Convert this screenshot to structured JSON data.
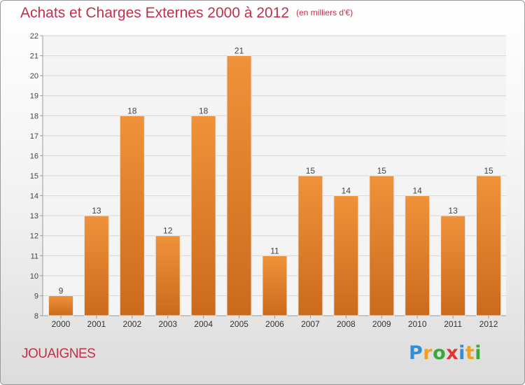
{
  "title": "Achats et Charges Externes 2000 à 2012",
  "unit": "(en milliers d'€)",
  "commune": "JOUAIGNES",
  "logo": {
    "letters": [
      "P",
      "r",
      "o",
      "x",
      "i",
      "t",
      "i"
    ]
  },
  "chart_data": {
    "type": "bar",
    "categories": [
      "2000",
      "2001",
      "2002",
      "2003",
      "2004",
      "2005",
      "2006",
      "2007",
      "2008",
      "2009",
      "2010",
      "2011",
      "2012"
    ],
    "values": [
      9,
      13,
      18,
      12,
      18,
      21,
      11,
      15,
      14,
      15,
      14,
      13,
      15
    ],
    "ylim": [
      8,
      22
    ],
    "yticks": [
      8,
      9,
      10,
      11,
      12,
      13,
      14,
      15,
      16,
      17,
      18,
      19,
      20,
      21,
      22
    ],
    "grid": true,
    "bar_color": "#f0923a",
    "bar_color_dark": "#cc6a1c",
    "title": "Achats et Charges Externes 2000 à 2012",
    "xlabel": "",
    "ylabel": ""
  }
}
